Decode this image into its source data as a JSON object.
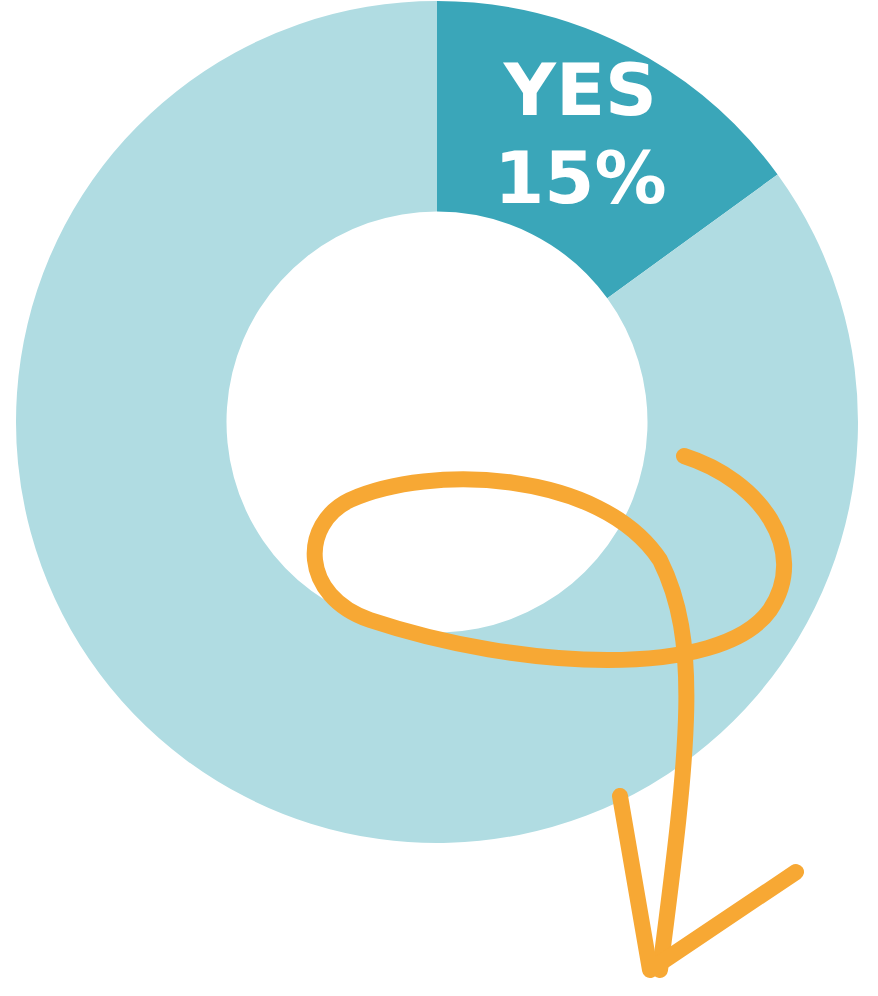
{
  "chart_data": {
    "type": "donut",
    "categories": [
      "YES",
      null
    ],
    "values": [
      15,
      85
    ],
    "colors": [
      "#3aa6b9",
      "#b0dce2"
    ],
    "value_labels": [
      "15%",
      null
    ],
    "legend": false
  }
}
